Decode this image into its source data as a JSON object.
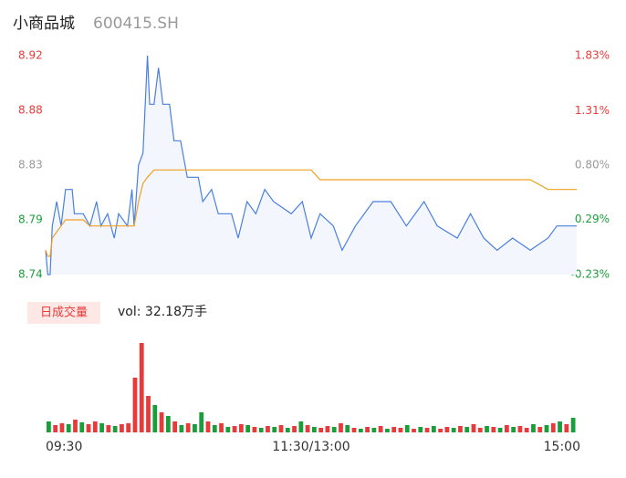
{
  "chart_data": [
    {
      "type": "line",
      "title": "小商品城",
      "subtitle": "600415.SH",
      "xlim": [
        0,
        240
      ],
      "x": [
        0,
        1,
        2,
        3,
        5,
        7,
        9,
        12,
        13,
        17,
        20,
        23,
        25,
        28,
        31,
        33,
        37,
        39,
        40,
        42,
        44,
        46,
        47,
        49,
        51,
        53,
        56,
        58,
        61,
        64,
        69,
        71,
        75,
        78,
        84,
        87,
        91,
        95,
        99,
        103,
        111,
        116,
        120,
        124,
        130,
        134,
        140,
        148,
        156,
        163,
        171,
        177,
        186,
        192,
        198,
        204,
        211,
        219,
        227,
        231,
        240
      ],
      "series": [
        {
          "color": "#4a7fe0",
          "fill": "#f3f7fd",
          "values": [
            8.76,
            8.74,
            8.74,
            8.78,
            8.8,
            8.78,
            8.81,
            8.81,
            8.79,
            8.79,
            8.78,
            8.8,
            8.78,
            8.79,
            8.77,
            8.79,
            8.78,
            8.81,
            8.78,
            8.83,
            8.84,
            8.92,
            8.88,
            8.88,
            8.91,
            8.88,
            8.88,
            8.85,
            8.85,
            8.82,
            8.82,
            8.8,
            8.81,
            8.79,
            8.79,
            8.77,
            8.8,
            8.79,
            8.81,
            8.8,
            8.79,
            8.8,
            8.77,
            8.79,
            8.78,
            8.76,
            8.78,
            8.8,
            8.8,
            8.78,
            8.8,
            8.78,
            8.77,
            8.79,
            8.77,
            8.76,
            8.77,
            8.76,
            8.77,
            8.78,
            8.78
          ]
        },
        {
          "color": "#f0a020",
          "values": [
            8.76,
            8.755,
            8.755,
            8.77,
            8.775,
            8.78,
            8.785,
            8.785,
            8.785,
            8.785,
            8.78,
            8.78,
            8.78,
            8.78,
            8.78,
            8.78,
            8.78,
            8.78,
            8.78,
            8.8,
            8.815,
            8.82,
            8.822,
            8.826,
            8.826,
            8.826,
            8.826,
            8.826,
            8.826,
            8.826,
            8.826,
            8.826,
            8.826,
            8.826,
            8.826,
            8.826,
            8.826,
            8.826,
            8.826,
            8.826,
            8.826,
            8.826,
            8.826,
            8.818,
            8.818,
            8.818,
            8.818,
            8.818,
            8.818,
            8.818,
            8.818,
            8.818,
            8.818,
            8.818,
            8.818,
            8.818,
            8.818,
            8.818,
            8.81,
            8.81,
            8.81
          ]
        }
      ],
      "ylim": [
        8.74,
        8.92
      ],
      "yticks": [
        {
          "value": 8.74,
          "label": "8.74"
        },
        {
          "value": 8.785,
          "label": "8.79"
        },
        8.83,
        {
          "value": 8.875,
          "label": "8.88"
        },
        8.92
      ],
      "y2lim": [
        -0.23,
        1.83
      ],
      "y2ticks": [
        {
          "value": -0.23,
          "label": "-0.23%"
        },
        {
          "value": 0.29,
          "label": "0.29%"
        },
        {
          "value": 0.8,
          "label": "0.80%"
        },
        {
          "value": 1.31,
          "label": "1.31%"
        },
        {
          "value": 1.83,
          "label": "1.83%"
        }
      ],
      "up_color": "#e83a3a",
      "down_color": "#1a9e3a",
      "flat_color": "#999999"
    },
    {
      "type": "bar",
      "title": "日成交量",
      "subtitle": "vol: 32.18万手",
      "xlim": [
        0,
        240
      ],
      "xticks": [
        {
          "value": 0,
          "label": "09:30"
        },
        {
          "value": 120,
          "label": "11:30/13:00"
        },
        {
          "value": 240,
          "label": "15:00"
        }
      ],
      "values": [
        12,
        8,
        10,
        9,
        14,
        11,
        9,
        12,
        10,
        8,
        7,
        9,
        10,
        60,
        98,
        40,
        30,
        22,
        18,
        12,
        8,
        10,
        9,
        22,
        12,
        8,
        10,
        6,
        7,
        9,
        8,
        6,
        5,
        7,
        6,
        8,
        5,
        7,
        12,
        8,
        6,
        5,
        7,
        6,
        10,
        8,
        5,
        4,
        6,
        5,
        7,
        4,
        6,
        5,
        8,
        4,
        6,
        5,
        7,
        4,
        6,
        5,
        7,
        6,
        9,
        5,
        7,
        6,
        5,
        8,
        6,
        7,
        5,
        9,
        6,
        8,
        10,
        12,
        9,
        16
      ],
      "up": [
        false,
        true,
        true,
        false,
        true,
        false,
        true,
        true,
        false,
        true,
        false,
        true,
        true,
        true,
        true,
        true,
        false,
        true,
        false,
        true,
        false,
        true,
        false,
        false,
        true,
        false,
        true,
        false,
        true,
        true,
        false,
        true,
        false,
        true,
        false,
        true,
        false,
        true,
        false,
        true,
        false,
        true,
        true,
        false,
        true,
        false,
        true,
        false,
        true,
        false,
        true,
        false,
        true,
        true,
        false,
        true,
        false,
        true,
        false,
        true,
        true,
        false,
        true,
        false,
        true,
        true,
        false,
        true,
        false,
        true,
        false,
        true,
        true,
        false,
        true,
        false,
        true,
        false,
        true,
        false
      ],
      "up_color": "#e83a3a",
      "down_color": "#1a9e3a"
    }
  ]
}
